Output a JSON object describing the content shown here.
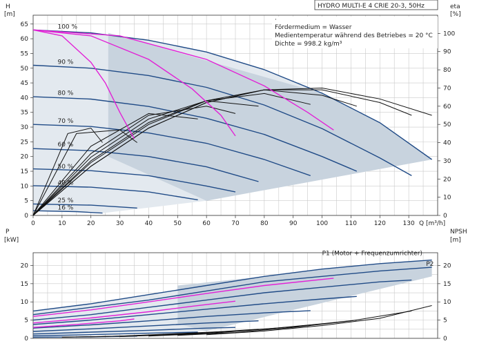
{
  "chart_data": [
    {
      "type": "line",
      "title": "HYDRO MULTI-E 4 CRIE 20-3, 50Hz",
      "ylabel": "H",
      "yunit": "[m]",
      "y2label": "eta",
      "y2unit": "[%]",
      "xlabel": "Q [m³/h]",
      "xlim": [
        0,
        140
      ],
      "ylim": [
        0,
        68
      ],
      "y2lim": [
        0,
        110
      ],
      "xticks": [
        "0",
        "10",
        "20",
        "30",
        "40",
        "50",
        "60",
        "70",
        "80",
        "90",
        "100",
        "110",
        "120",
        "130"
      ],
      "yticks": [
        "0",
        "5",
        "10",
        "15",
        "20",
        "25",
        "30",
        "35",
        "40",
        "45",
        "50",
        "55",
        "60",
        "65"
      ],
      "y2ticks": [
        "0",
        "10",
        "20",
        "30",
        "40",
        "50",
        "60",
        "70",
        "80",
        "90",
        "100"
      ],
      "grid": true,
      "info": {
        "marker": "·",
        "medium": "Fördermedium = Wasser",
        "temperature": "Medientemperatur während des Betriebes = 20 °C",
        "density": "Dichte = 998.2 kg/m³"
      },
      "speed_labels": [
        {
          "text": "100 %",
          "x": 8,
          "y": 63
        },
        {
          "text": "90 %",
          "x": 8,
          "y": 51
        },
        {
          "text": "80 %",
          "x": 8,
          "y": 40.5
        },
        {
          "text": "70 %",
          "x": 8,
          "y": 31
        },
        {
          "text": "60 %",
          "x": 8,
          "y": 23
        },
        {
          "text": "50 %",
          "x": 8,
          "y": 15.5
        },
        {
          "text": "40 %",
          "x": 8,
          "y": 10
        },
        {
          "text": "25 %",
          "x": 8,
          "y": 4
        },
        {
          "text": "16 %",
          "x": 8,
          "y": 1.5
        }
      ],
      "series": [
        {
          "speed": 100,
          "x": [
            0,
            20,
            40,
            60,
            80,
            100,
            120,
            138
          ],
          "y": [
            63,
            62,
            59.5,
            55.5,
            49.5,
            41.5,
            31.5,
            19
          ]
        },
        {
          "speed": 90,
          "x": [
            0,
            20,
            40,
            60,
            80,
            100,
            120,
            131
          ],
          "y": [
            51,
            50,
            47.5,
            43.5,
            37.5,
            29.5,
            19.5,
            13.5
          ]
        },
        {
          "speed": 80,
          "x": [
            0,
            20,
            40,
            60,
            80,
            100,
            112
          ],
          "y": [
            40.3,
            39.5,
            37,
            33,
            27.5,
            20,
            15
          ]
        },
        {
          "speed": 70,
          "x": [
            0,
            20,
            40,
            60,
            80,
            96
          ],
          "y": [
            30.9,
            30.2,
            28,
            24.5,
            19,
            13.5
          ]
        },
        {
          "speed": 60,
          "x": [
            0,
            20,
            40,
            60,
            78
          ],
          "y": [
            22.7,
            22,
            20,
            16.5,
            11.5
          ]
        },
        {
          "speed": 50,
          "x": [
            0,
            20,
            40,
            60,
            70
          ],
          "y": [
            15.8,
            15.2,
            13.5,
            10,
            8
          ]
        },
        {
          "speed": 40,
          "x": [
            0,
            20,
            40,
            57
          ],
          "y": [
            10.1,
            9.6,
            8,
            5.3
          ]
        },
        {
          "speed": 25,
          "x": [
            0,
            20,
            36
          ],
          "y": [
            3.9,
            3.5,
            2.5
          ]
        },
        {
          "speed": 16,
          "x": [
            0,
            15,
            24
          ],
          "y": [
            1.6,
            1.3,
            0.8
          ]
        }
      ],
      "magenta_duty": [
        {
          "x": [
            0,
            10,
            20,
            25,
            30,
            35
          ],
          "y": [
            63,
            61,
            52,
            45,
            35,
            26
          ]
        },
        {
          "x": [
            0,
            20,
            40,
            55,
            65,
            70
          ],
          "y": [
            63,
            61,
            53,
            43,
            34,
            27
          ]
        },
        {
          "x": [
            0,
            30,
            60,
            80,
            95,
            104
          ],
          "y": [
            63,
            61,
            53,
            44,
            35,
            29
          ]
        }
      ],
      "efficiency_series": [
        {
          "speed": 100,
          "x": [
            0,
            20,
            40,
            60,
            80,
            100,
            120,
            138
          ],
          "y": [
            0,
            27,
            48,
            62,
            69,
            70,
            64,
            55
          ]
        },
        {
          "speed": 90,
          "x": [
            0,
            20,
            40,
            60,
            80,
            100,
            120,
            131
          ],
          "y": [
            0,
            27,
            48,
            62,
            69,
            69,
            62,
            55
          ]
        },
        {
          "speed": 80,
          "x": [
            0,
            20,
            40,
            60,
            80,
            100,
            112
          ],
          "y": [
            0,
            29,
            50,
            63,
            69,
            66,
            60
          ]
        },
        {
          "speed": 70,
          "x": [
            0,
            20,
            40,
            60,
            80,
            96
          ],
          "y": [
            0,
            30,
            51,
            63,
            67,
            61
          ]
        },
        {
          "speed": 60,
          "x": [
            0,
            20,
            40,
            60,
            78
          ],
          "y": [
            0,
            32,
            53,
            63,
            60
          ]
        },
        {
          "speed": 50,
          "x": [
            0,
            20,
            40,
            60,
            70
          ],
          "y": [
            0,
            34,
            55,
            60,
            56
          ]
        },
        {
          "speed": 40,
          "x": [
            0,
            20,
            40,
            57
          ],
          "y": [
            0,
            38,
            56,
            53
          ]
        },
        {
          "speed": 25,
          "x": [
            0,
            15,
            30,
            36
          ],
          "y": [
            0,
            45,
            47,
            40
          ]
        },
        {
          "speed": 16,
          "x": [
            0,
            12,
            20,
            24
          ],
          "y": [
            0,
            45,
            48,
            40
          ]
        }
      ]
    },
    {
      "type": "line",
      "ylabel": "P",
      "yunit": "[kW]",
      "y2label": "NPSH",
      "y2unit": "[m]",
      "xlim": [
        0,
        140
      ],
      "ylim": [
        0,
        23.5
      ],
      "yticks": [
        "0",
        "5",
        "10",
        "15",
        "20"
      ],
      "y2ticks": [
        "0",
        "5",
        "10",
        "15",
        "20"
      ],
      "grid": true,
      "annotations": [
        {
          "text": "P1 (Motor + Frequenzumrichter)",
          "x": 100,
          "y": 22.5
        },
        {
          "text": "P2",
          "x": 136,
          "y": 19.5
        }
      ],
      "series": [
        {
          "name": "P1",
          "x": [
            0,
            20,
            40,
            60,
            80,
            100,
            120,
            138
          ],
          "y": [
            7.5,
            9.5,
            12,
            14.5,
            17,
            19,
            20.5,
            21.5
          ]
        },
        {
          "name": "P2",
          "x": [
            0,
            20,
            40,
            60,
            80,
            100,
            120,
            138
          ],
          "y": [
            6.5,
            8.5,
            10.5,
            13,
            15.5,
            17,
            18.5,
            19.5
          ]
        },
        {
          "speed": 90,
          "x": [
            0,
            20,
            40,
            60,
            80,
            100,
            120,
            131
          ],
          "y": [
            5,
            6.5,
            8.5,
            10.5,
            12.5,
            14,
            15.5,
            16
          ]
        },
        {
          "speed": 80,
          "x": [
            0,
            20,
            40,
            60,
            80,
            100,
            112
          ],
          "y": [
            3.8,
            5,
            6.5,
            8,
            9.5,
            10.8,
            11.5
          ]
        },
        {
          "speed": 70,
          "x": [
            0,
            20,
            40,
            60,
            80,
            96
          ],
          "y": [
            2.8,
            3.7,
            4.8,
            6,
            7,
            7.6
          ]
        },
        {
          "speed": 60,
          "x": [
            0,
            20,
            40,
            60,
            78
          ],
          "y": [
            1.9,
            2.6,
            3.4,
            4.2,
            4.8
          ]
        },
        {
          "speed": 50,
          "x": [
            0,
            20,
            40,
            60,
            70
          ],
          "y": [
            1.2,
            1.7,
            2.2,
            2.8,
            3
          ]
        },
        {
          "speed": 40,
          "x": [
            0,
            20,
            40,
            57
          ],
          "y": [
            0.7,
            1,
            1.4,
            1.7
          ]
        },
        {
          "speed": 25,
          "x": [
            0,
            20,
            36
          ],
          "y": [
            0.3,
            0.4,
            0.6
          ]
        }
      ],
      "magenta_power": [
        {
          "x": [
            0,
            20,
            40,
            60,
            80,
            104
          ],
          "y": [
            6,
            7.8,
            10,
            12.3,
            14.5,
            16.5
          ]
        },
        {
          "x": [
            0,
            20,
            40,
            55,
            70
          ],
          "y": [
            4.2,
            5.6,
            7.3,
            8.8,
            10.2
          ]
        },
        {
          "x": [
            0,
            15,
            30,
            35
          ],
          "y": [
            3,
            3.8,
            4.8,
            5.3
          ]
        }
      ],
      "npsh_series": [
        {
          "x": [
            60,
            80,
            100,
            120,
            138
          ],
          "y": [
            1,
            2,
            3.5,
            5.5,
            9
          ]
        },
        {
          "x": [
            50,
            70,
            90,
            110,
            131
          ],
          "y": [
            0.8,
            1.6,
            3,
            4.8,
            7.5
          ]
        },
        {
          "x": [
            40,
            60,
            80,
            100,
            112
          ],
          "y": [
            0.6,
            1.3,
            2.5,
            4,
            5
          ]
        },
        {
          "x": [
            30,
            50,
            70,
            96
          ],
          "y": [
            0.5,
            1,
            2,
            3.5
          ]
        },
        {
          "x": [
            20,
            40,
            60,
            78
          ],
          "y": [
            0.4,
            0.8,
            1.6,
            2.5
          ]
        },
        {
          "x": [
            10,
            30,
            50,
            70
          ],
          "y": [
            0.3,
            0.6,
            1.3,
            2
          ]
        },
        {
          "x": [
            10,
            30,
            57
          ],
          "y": [
            0.3,
            0.6,
            1.3
          ]
        }
      ]
    }
  ]
}
